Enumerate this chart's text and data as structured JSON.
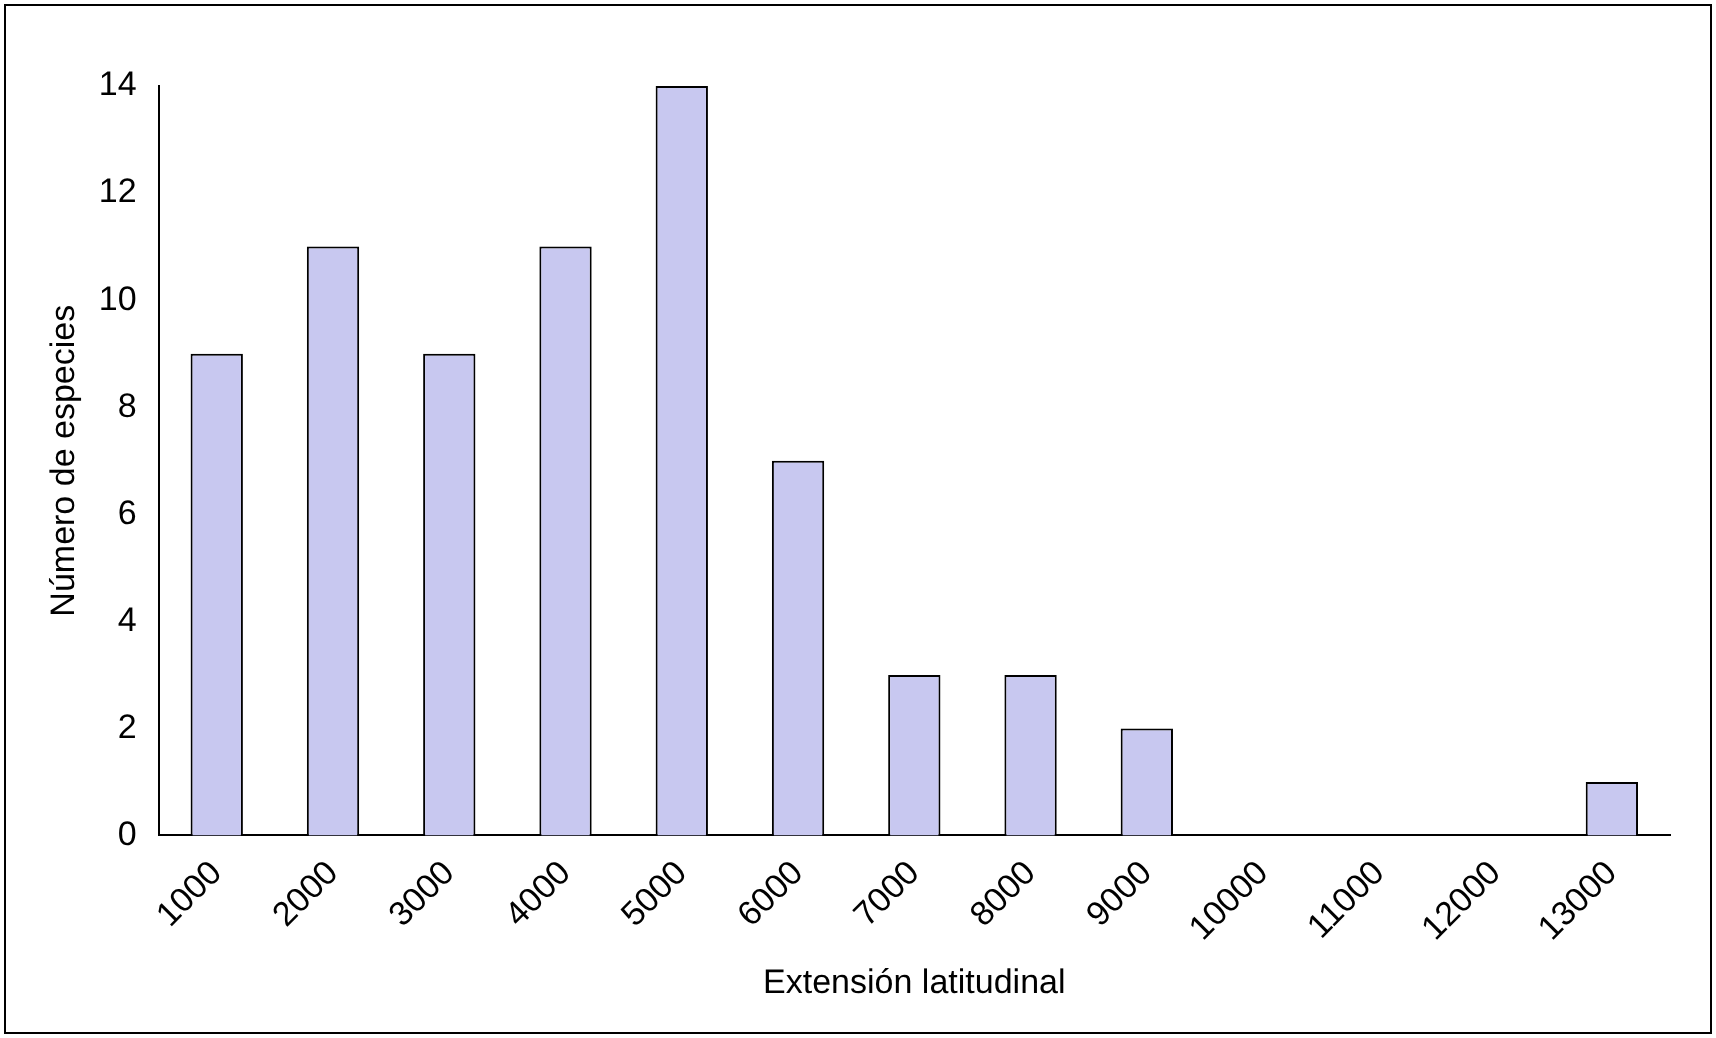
{
  "chart_data": {
    "type": "bar",
    "xlabel": "Extensión latitudinal",
    "ylabel": "Número de especies",
    "categories": [
      "1000",
      "2000",
      "3000",
      "4000",
      "5000",
      "6000",
      "7000",
      "8000",
      "9000",
      "10000",
      "11000",
      "12000",
      "13000"
    ],
    "values": [
      9,
      11,
      9,
      11,
      14,
      7,
      3,
      3,
      2,
      0,
      0,
      0,
      1
    ],
    "color": "#c8c8f0",
    "ylim": [
      0,
      14
    ],
    "yticks": [
      0,
      2,
      4,
      6,
      8,
      10,
      12,
      14
    ],
    "grid": false,
    "legend": false
  }
}
